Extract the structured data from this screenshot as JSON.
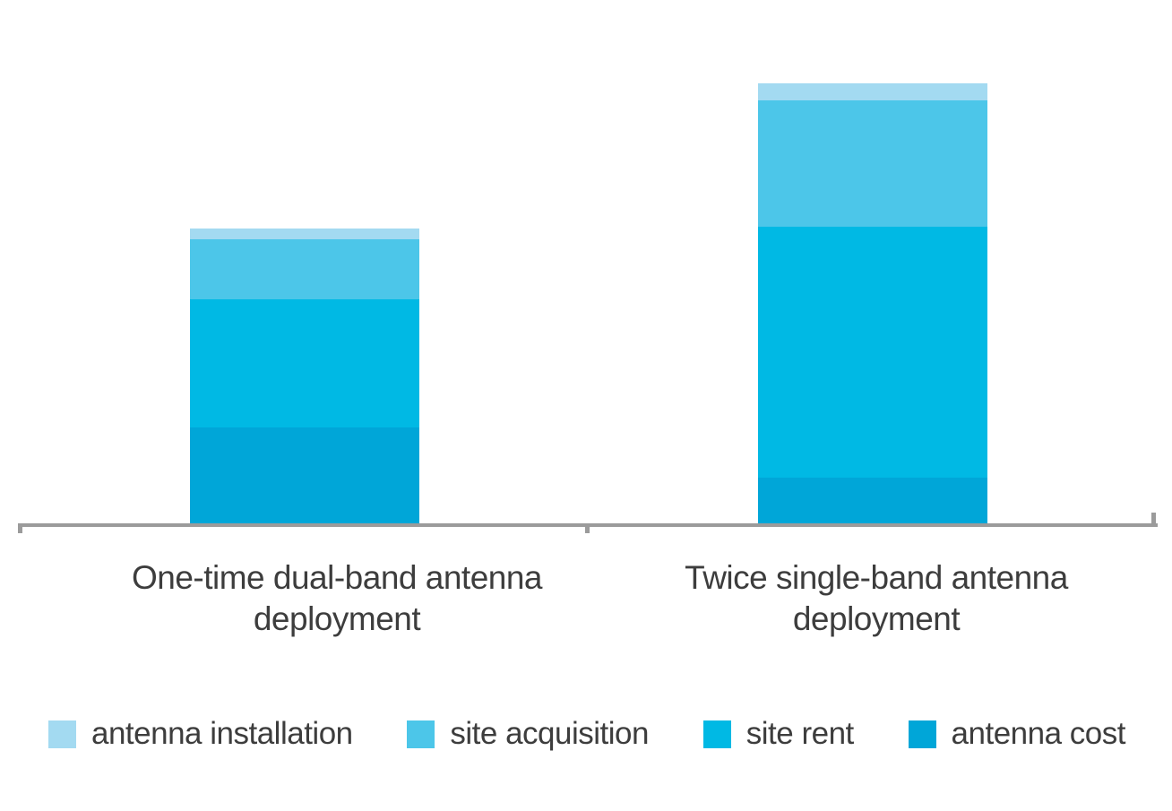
{
  "page": {
    "background": "#ffffff",
    "axis_color": "#9b9b9b",
    "text_color": "#3d3d3d"
  },
  "chart_data": {
    "type": "bar",
    "stacked": true,
    "orientation": "vertical",
    "title": "",
    "xlabel": "",
    "ylabel": "",
    "grid": false,
    "axis_tick_labels_shown": false,
    "legend_position": "bottom",
    "value_units": "relative height units (y-axis unlabeled; values estimated from chart geometry)",
    "categories": [
      "One-time dual-band antenna deployment",
      "Twice single-band antenna deployment"
    ],
    "series": [
      {
        "name": "antenna installation",
        "color": "#a3daf1",
        "values": [
          12,
          19
        ]
      },
      {
        "name": "site acquisition",
        "color": "#4cc6e9",
        "values": [
          67,
          141
        ]
      },
      {
        "name": "site rent",
        "color": "#00b9e4",
        "values": [
          143,
          280
        ]
      },
      {
        "name": "antenna cost",
        "color": "#00a6d8",
        "values": [
          107,
          51
        ]
      }
    ],
    "totals": [
      329,
      491
    ]
  }
}
